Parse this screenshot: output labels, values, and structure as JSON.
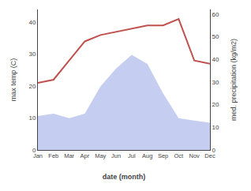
{
  "chart_data": {
    "type": "line",
    "categories": [
      "Jan",
      "Feb",
      "Mar",
      "Apr",
      "May",
      "Jun",
      "Jul",
      "Aug",
      "Sep",
      "Oct",
      "Nov",
      "Dec"
    ],
    "series": [
      {
        "type": "area",
        "axis": "y2",
        "color": "#c5cef0",
        "values": [
          15,
          16,
          14,
          16,
          28,
          36,
          42,
          38,
          25,
          14,
          13,
          12
        ]
      },
      {
        "type": "line",
        "axis": "y",
        "color": "#c0504d",
        "values": [
          21,
          22,
          28,
          34,
          36,
          37,
          38,
          39,
          39,
          41,
          28,
          27
        ]
      }
    ],
    "xlabel": "date (month)",
    "ylabel": "max temp (C)",
    "y2label": "med. precipitation (kg/m2)",
    "ylim": [
      0,
      44
    ],
    "yticks": [
      0,
      10,
      20,
      30,
      40
    ],
    "y2lim": [
      0,
      62
    ],
    "y2ticks": [
      0,
      10,
      20,
      30,
      40,
      50,
      60
    ],
    "grid": false
  }
}
